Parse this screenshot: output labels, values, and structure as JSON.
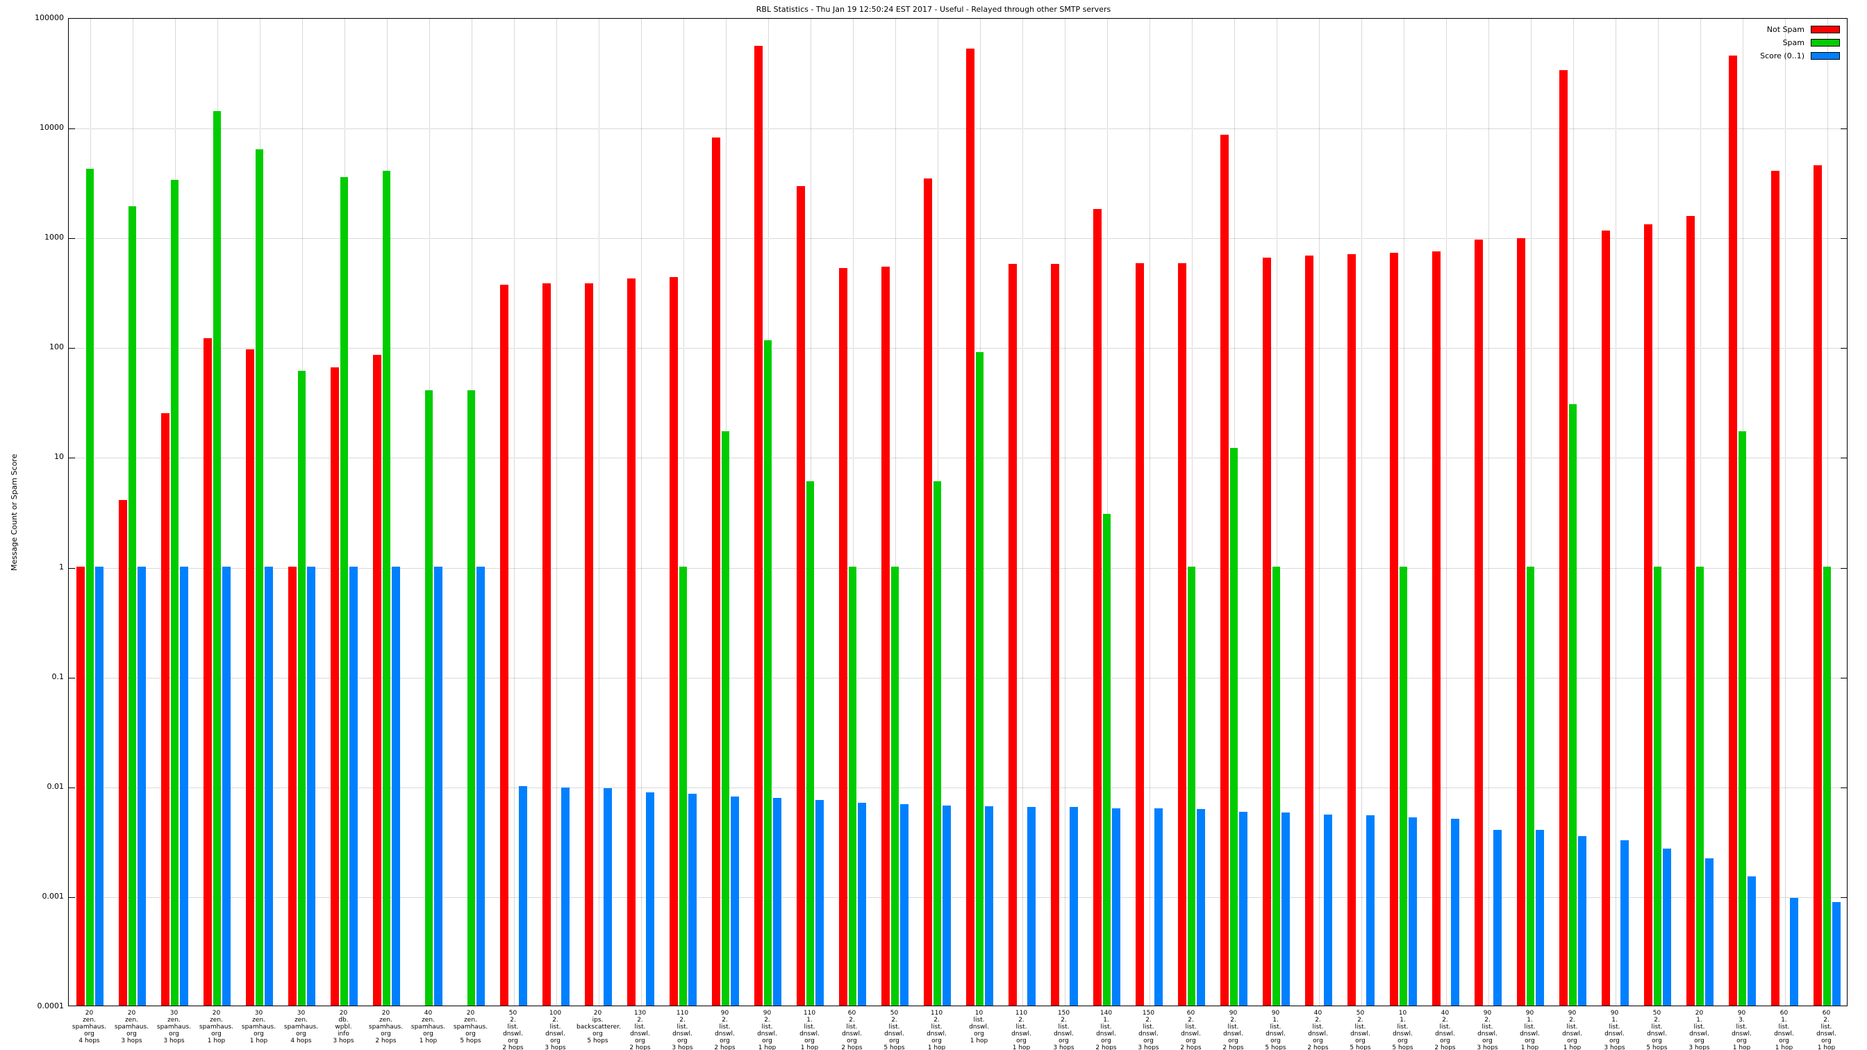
{
  "chart_data": {
    "type": "bar",
    "title": "RBL Statistics - Thu Jan 19 12:50:24 EST 2017 - Useful - Relayed through other SMTP servers",
    "ylabel": "Message Count or Spam Score",
    "xlabel": "",
    "y_scale": "log",
    "ylim": [
      0.0001,
      100000
    ],
    "y_ticks": [
      "100000",
      "10000",
      "1000",
      "100",
      "10",
      "1",
      "0.1",
      "0.01",
      "0.001",
      "0.0001"
    ],
    "grid": true,
    "legend_position": "top-right",
    "categories": [
      [
        "20",
        "zen.",
        "spamhaus.",
        "org",
        "4 hops"
      ],
      [
        "20",
        "zen.",
        "spamhaus.",
        "org",
        "3 hops"
      ],
      [
        "30",
        "zen.",
        "spamhaus.",
        "org",
        "3 hops"
      ],
      [
        "20",
        "zen.",
        "spamhaus.",
        "org",
        "1 hop"
      ],
      [
        "30",
        "zen.",
        "spamhaus.",
        "org",
        "1 hop"
      ],
      [
        "30",
        "zen.",
        "spamhaus.",
        "org",
        "4 hops"
      ],
      [
        "20",
        "db.",
        "wpbl.",
        "info",
        "3 hops"
      ],
      [
        "20",
        "zen.",
        "spamhaus.",
        "org",
        "2 hops"
      ],
      [
        "40",
        "zen.",
        "spamhaus.",
        "org",
        "1 hop"
      ],
      [
        "20",
        "zen.",
        "spamhaus.",
        "org",
        "5 hops"
      ],
      [
        "50",
        "2.",
        "list.",
        "dnswl.",
        "org",
        "2 hops"
      ],
      [
        "100",
        "2.",
        "list.",
        "dnswl.",
        "org",
        "3 hops"
      ],
      [
        "20",
        "ips.",
        "backscatterer.",
        "org",
        "5 hops"
      ],
      [
        "130",
        "2.",
        "list.",
        "dnswl.",
        "org",
        "2 hops"
      ],
      [
        "110",
        "2.",
        "list.",
        "dnswl.",
        "org",
        "3 hops"
      ],
      [
        "90",
        "2.",
        "list.",
        "dnswl.",
        "org",
        "2 hops"
      ],
      [
        "90",
        "2.",
        "list.",
        "dnswl.",
        "org",
        "1 hop"
      ],
      [
        "110",
        "1.",
        "list.",
        "dnswl.",
        "org",
        "1 hop"
      ],
      [
        "60",
        "2.",
        "list.",
        "dnswl.",
        "org",
        "2 hops"
      ],
      [
        "50",
        "2.",
        "list.",
        "dnswl.",
        "org",
        "5 hops"
      ],
      [
        "110",
        "2.",
        "list.",
        "dnswl.",
        "org",
        "1 hop"
      ],
      [
        "10",
        "list.",
        "dnswl.",
        "org",
        "1 hop"
      ],
      [
        "110",
        "2.",
        "list.",
        "dnswl.",
        "org",
        "1 hop"
      ],
      [
        "150",
        "2.",
        "list.",
        "dnswl.",
        "org",
        "3 hops"
      ],
      [
        "140",
        "1.",
        "list.",
        "dnswl.",
        "org",
        "2 hops"
      ],
      [
        "150",
        "2.",
        "list.",
        "dnswl.",
        "org",
        "3 hops"
      ],
      [
        "60",
        "2.",
        "list.",
        "dnswl.",
        "org",
        "2 hops"
      ],
      [
        "90",
        "2.",
        "list.",
        "dnswl.",
        "org",
        "2 hops"
      ],
      [
        "90",
        "1.",
        "list.",
        "dnswl.",
        "org",
        "5 hops"
      ],
      [
        "40",
        "2.",
        "list.",
        "dnswl.",
        "org",
        "2 hops"
      ],
      [
        "50",
        "2.",
        "list.",
        "dnswl.",
        "org",
        "5 hops"
      ],
      [
        "10",
        "1.",
        "list.",
        "dnswl.",
        "org",
        "5 hops"
      ],
      [
        "40",
        "2.",
        "list.",
        "dnswl.",
        "org",
        "2 hops"
      ],
      [
        "90",
        "2.",
        "list.",
        "dnswl.",
        "org",
        "3 hops"
      ],
      [
        "90",
        "1.",
        "list.",
        "dnswl.",
        "org",
        "1 hop"
      ],
      [
        "90",
        "2.",
        "list.",
        "dnswl.",
        "org",
        "1 hop"
      ],
      [
        "90",
        "1.",
        "list.",
        "dnswl.",
        "org",
        "3 hops"
      ],
      [
        "50",
        "2.",
        "list.",
        "dnswl.",
        "org",
        "5 hops"
      ],
      [
        "20",
        "1.",
        "list.",
        "dnswl.",
        "org",
        "3 hops"
      ],
      [
        "90",
        "3.",
        "list.",
        "dnswl.",
        "org",
        "1 hop"
      ],
      [
        "60",
        "1.",
        "list.",
        "dnswl.",
        "org",
        "1 hop"
      ],
      [
        "60",
        "2.",
        "list.",
        "dnswl.",
        "org",
        "1 hop"
      ]
    ],
    "series": [
      {
        "name": "Not Spam",
        "color": "#ff0000",
        "values": [
          1,
          4,
          25,
          120,
          95,
          1,
          65,
          85,
          0,
          0,
          370,
          380,
          380,
          420,
          430,
          8000,
          55000,
          2900,
          520,
          540,
          3400,
          52000,
          570,
          570,
          1800,
          580,
          580,
          8500,
          650,
          680,
          700,
          720,
          740,
          950,
          980,
          33000,
          1150,
          1300,
          1550,
          45000,
          4000,
          4500
        ]
      },
      {
        "name": "Spam",
        "color": "#00cc00",
        "values": [
          4200,
          1900,
          3300,
          14000,
          6300,
          60,
          3500,
          4000,
          40,
          40,
          0,
          0,
          0,
          0,
          1,
          17,
          115,
          6,
          1,
          1,
          6,
          90,
          0,
          0,
          3,
          0,
          1,
          12,
          1,
          0,
          0,
          1,
          0,
          0,
          1,
          30,
          0,
          1,
          1,
          17,
          0,
          1
        ]
      },
      {
        "name": "Score (0..1)",
        "color": "#0080ff",
        "values": [
          1,
          1,
          1,
          1,
          1,
          1,
          1,
          1,
          1,
          1,
          0.01,
          0.0097,
          0.0095,
          0.0088,
          0.0085,
          0.008,
          0.0078,
          0.0075,
          0.007,
          0.0068,
          0.0066,
          0.0065,
          0.0064,
          0.0064,
          0.0063,
          0.0063,
          0.0062,
          0.0058,
          0.0057,
          0.0055,
          0.0054,
          0.0052,
          0.005,
          0.004,
          0.004,
          0.0035,
          0.0032,
          0.0027,
          0.0022,
          0.0015,
          0.00095,
          0.00088
        ]
      }
    ]
  }
}
